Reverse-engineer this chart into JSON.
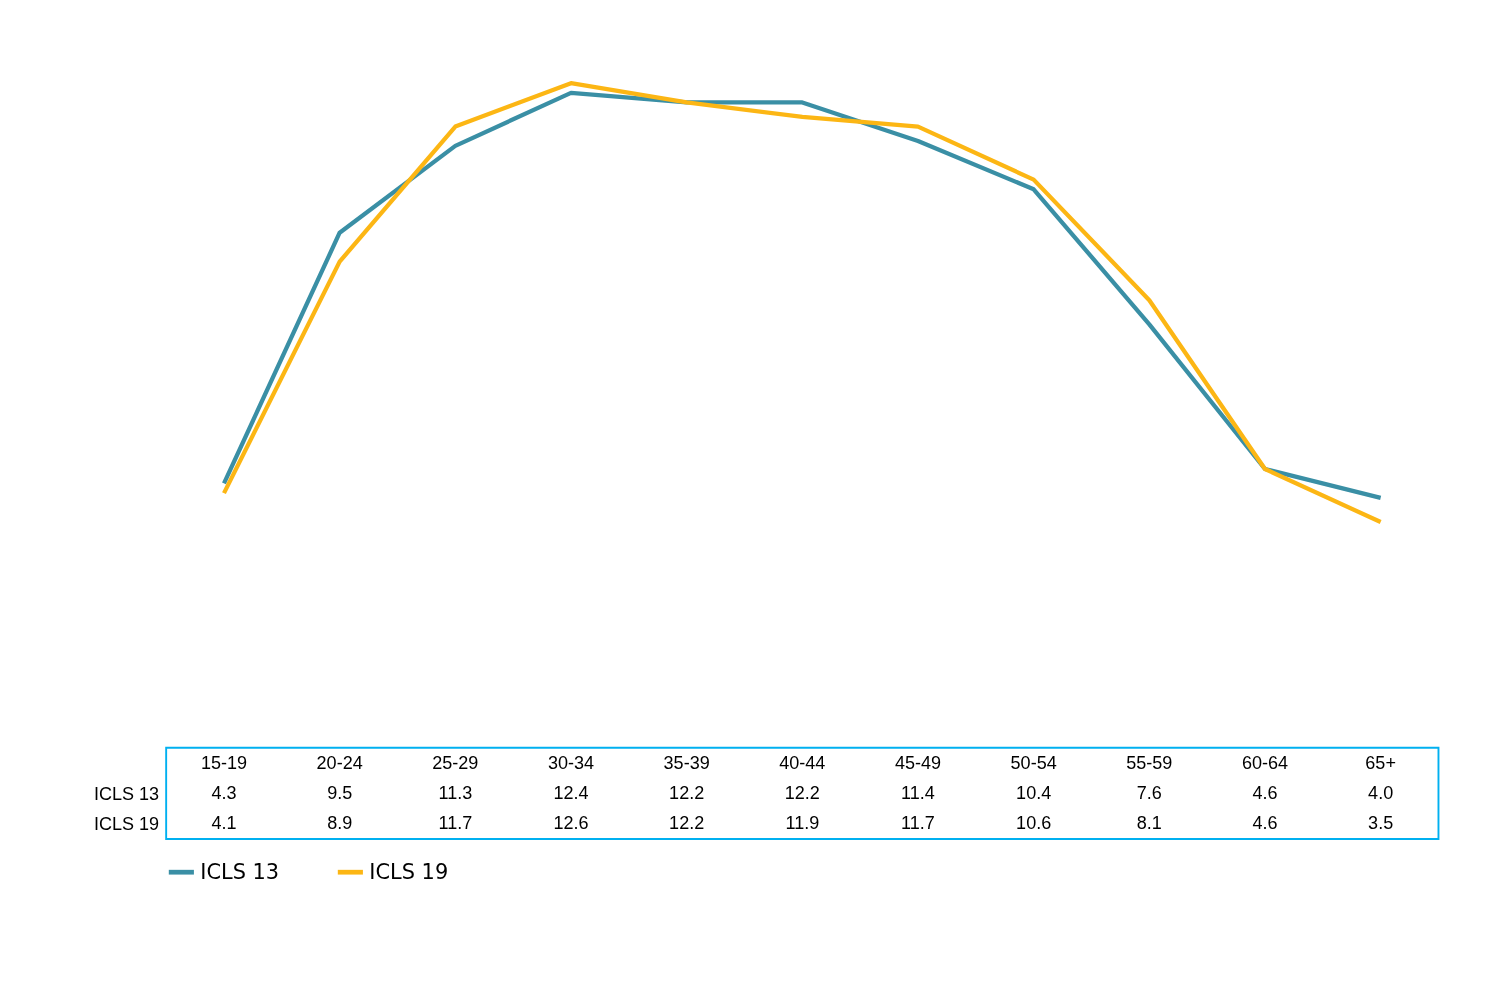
{
  "chart_data": {
    "type": "line",
    "categories": [
      "15-19",
      "20-24",
      "25-29",
      "30-34",
      "35-39",
      "40-44",
      "45-49",
      "50-54",
      "55-59",
      "60-64",
      "65+"
    ],
    "series": [
      {
        "name": "ICLS 13",
        "color": "#3a8fa5",
        "values": [
          4.3,
          9.5,
          11.3,
          12.4,
          12.2,
          12.2,
          11.4,
          10.4,
          7.6,
          4.6,
          4.0
        ],
        "value_labels": [
          "4.3",
          "9.5",
          "11.3",
          "12.4",
          "12.2",
          "12.2",
          "11.4",
          "10.4",
          "7.6",
          "4.6",
          "4.0"
        ]
      },
      {
        "name": "ICLS 19",
        "color": "#fcb614",
        "values": [
          4.1,
          8.9,
          11.7,
          12.6,
          12.2,
          11.9,
          11.7,
          10.6,
          8.1,
          4.6,
          3.5
        ],
        "value_labels": [
          "4.1",
          "8.9",
          "11.7",
          "12.6",
          "12.2",
          "11.9",
          "11.7",
          "10.6",
          "8.1",
          "4.6",
          "3.5"
        ]
      }
    ],
    "legend": "bottom",
    "marker": "none",
    "line_style": "solid",
    "grid": false
  }
}
